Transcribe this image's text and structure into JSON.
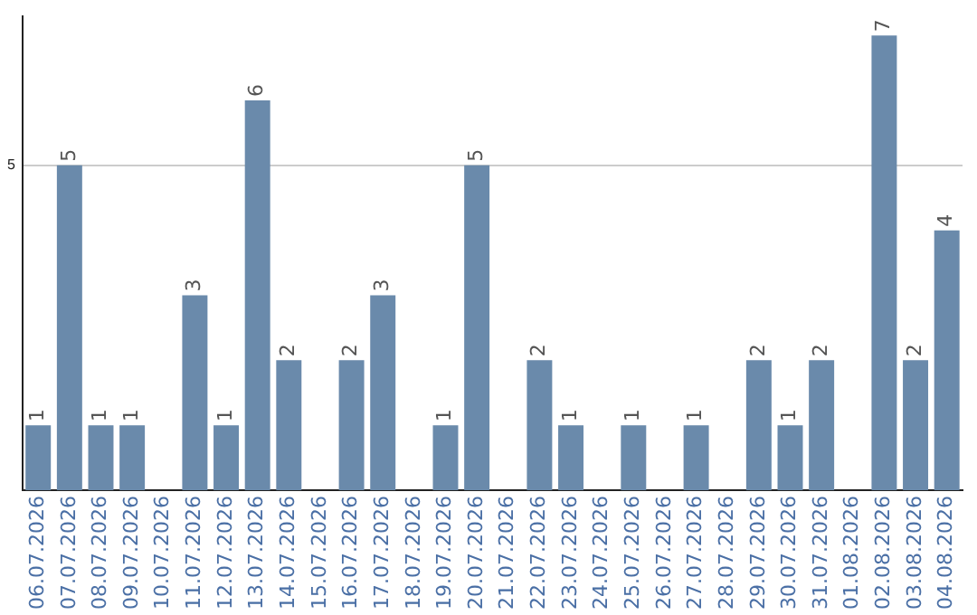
{
  "chart_data": {
    "type": "bar",
    "categories": [
      "06.07.2026",
      "07.07.2026",
      "08.07.2026",
      "09.07.2026",
      "10.07.2026",
      "11.07.2026",
      "12.07.2026",
      "13.07.2026",
      "14.07.2026",
      "15.07.2026",
      "16.07.2026",
      "17.07.2026",
      "18.07.2026",
      "19.07.2026",
      "20.07.2026",
      "21.07.2026",
      "22.07.2026",
      "23.07.2026",
      "24.07.2026",
      "25.07.2026",
      "26.07.2026",
      "27.07.2026",
      "28.07.2026",
      "29.07.2026",
      "30.07.2026",
      "31.07.2026",
      "01.08.2026",
      "02.08.2026",
      "03.08.2026",
      "04.08.2026"
    ],
    "values": [
      1,
      5,
      1,
      1,
      0,
      3,
      1,
      6,
      2,
      0,
      2,
      3,
      0,
      1,
      5,
      0,
      2,
      1,
      0,
      1,
      0,
      1,
      0,
      2,
      1,
      2,
      0,
      7,
      2,
      4
    ],
    "value_labels": [
      "1",
      "5",
      "1",
      "1",
      null,
      "3",
      "1",
      "6",
      "2",
      null,
      "2",
      "3",
      null,
      "1",
      "5",
      null,
      "2",
      "1",
      null,
      "1",
      null,
      "1",
      null,
      "2",
      "1",
      "2",
      null,
      "7",
      "2",
      "4"
    ],
    "color": "#6a8aab",
    "ylim": [
      0,
      7.3
    ],
    "yticks": [
      5
    ],
    "grid": "y",
    "legend": false
  }
}
